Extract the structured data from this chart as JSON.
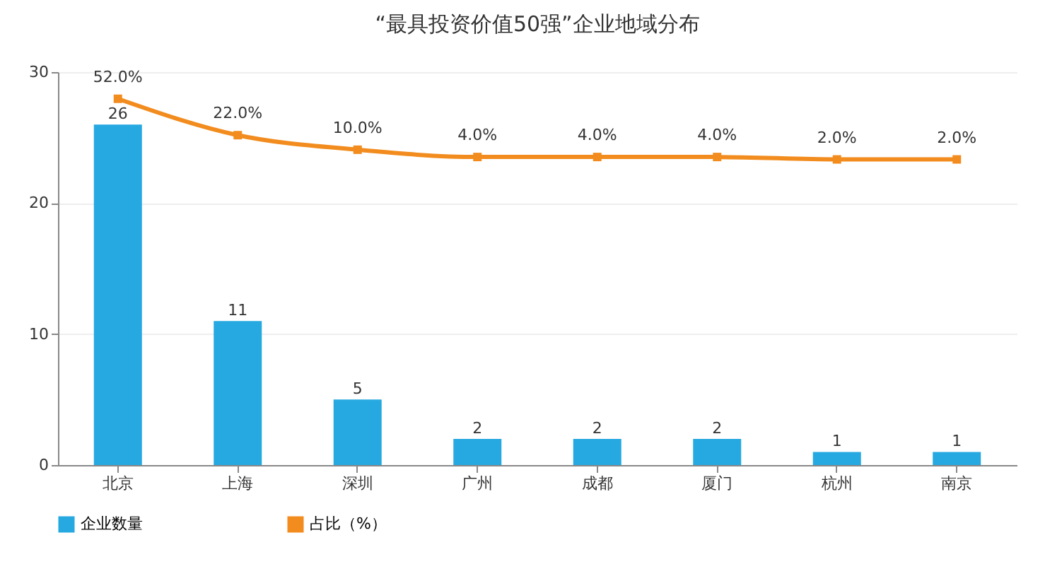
{
  "chart_data": {
    "type": "bar",
    "title": "“最具投资价值50强”企业地域分布",
    "categories": [
      "北京",
      "上海",
      "深圳",
      "广州",
      "成都",
      "厦门",
      "杭州",
      "南京"
    ],
    "series": [
      {
        "name": "企业数量",
        "color": "#26a9e0",
        "values": [
          26,
          11,
          5,
          2,
          2,
          2,
          1,
          1
        ],
        "value_labels": [
          "26",
          "11",
          "5",
          "2",
          "2",
          "2",
          "1",
          "1"
        ]
      },
      {
        "name": "占比（%）",
        "type": "line",
        "axis": "y2",
        "color": "#f28c1e",
        "values": [
          52.0,
          22.0,
          10.0,
          4.0,
          4.0,
          4.0,
          2.0,
          2.0
        ],
        "value_labels": [
          "52.0%",
          "22.0%",
          "10.0%",
          "4.0%",
          "4.0%",
          "4.0%",
          "2.0%",
          "2.0%"
        ]
      }
    ],
    "ylim": [
      0,
      30
    ],
    "yticks": [
      0,
      10,
      20,
      30
    ],
    "y2lim": [
      -250,
      74
    ],
    "grid": "y",
    "legend": "bottom",
    "marker": "square",
    "line_style": "solid"
  }
}
